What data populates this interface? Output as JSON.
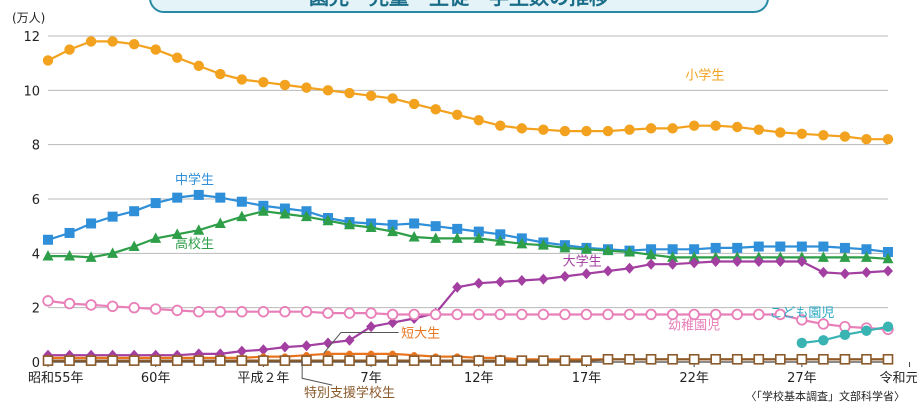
{
  "header": {
    "title": "園児・児童・生徒・学生数の推移"
  },
  "chart_data": {
    "type": "line",
    "title": "園児・児童・生徒・学生数の推移",
    "ylabel": "(万人)",
    "xlabel": "",
    "ylim": [
      0,
      12
    ],
    "y_ticks": [
      0,
      2,
      4,
      6,
      8,
      10,
      12
    ],
    "x_tick_labels": [
      "昭和55年",
      "60年",
      "平成２年",
      "7年",
      "12年",
      "17年",
      "22年",
      "27年",
      "令和元年"
    ],
    "grid": "horizontal",
    "source": "〈「学校基本調査」文部科学省〉",
    "x": [
      1980,
      1981,
      1982,
      1983,
      1984,
      1985,
      1986,
      1987,
      1988,
      1989,
      1990,
      1991,
      1992,
      1993,
      1994,
      1995,
      1996,
      1997,
      1998,
      1999,
      2000,
      2001,
      2002,
      2003,
      2004,
      2005,
      2006,
      2007,
      2008,
      2009,
      2010,
      2011,
      2012,
      2013,
      2014,
      2015,
      2016,
      2017,
      2018,
      2019
    ],
    "series": [
      {
        "name": "小学生",
        "color": "#f2a21e",
        "marker": "circle",
        "values": [
          11.1,
          11.5,
          11.8,
          11.8,
          11.7,
          11.5,
          11.2,
          10.9,
          10.6,
          10.4,
          10.3,
          10.2,
          10.1,
          10.0,
          9.9,
          9.8,
          9.7,
          9.5,
          9.3,
          9.1,
          8.9,
          8.7,
          8.6,
          8.55,
          8.5,
          8.5,
          8.5,
          8.55,
          8.6,
          8.6,
          8.7,
          8.7,
          8.65,
          8.55,
          8.45,
          8.4,
          8.35,
          8.3,
          8.2,
          8.2
        ]
      },
      {
        "name": "中学生",
        "color": "#2f8fd8",
        "marker": "square",
        "values": [
          4.5,
          4.75,
          5.1,
          5.35,
          5.55,
          5.85,
          6.05,
          6.15,
          6.05,
          5.9,
          5.75,
          5.65,
          5.55,
          5.3,
          5.15,
          5.1,
          5.05,
          5.1,
          5.0,
          4.9,
          4.8,
          4.7,
          4.55,
          4.4,
          4.3,
          4.2,
          4.15,
          4.1,
          4.15,
          4.15,
          4.15,
          4.2,
          4.2,
          4.25,
          4.25,
          4.25,
          4.25,
          4.2,
          4.15,
          4.05
        ]
      },
      {
        "name": "高校生",
        "color": "#2e9e48",
        "marker": "triangle",
        "values": [
          3.9,
          3.9,
          3.85,
          4.0,
          4.25,
          4.55,
          4.7,
          4.85,
          5.1,
          5.35,
          5.55,
          5.45,
          5.35,
          5.2,
          5.05,
          4.95,
          4.8,
          4.6,
          4.55,
          4.55,
          4.55,
          4.45,
          4.35,
          4.3,
          4.2,
          4.15,
          4.1,
          4.05,
          3.95,
          3.85,
          3.85,
          3.85,
          3.85,
          3.85,
          3.85,
          3.85,
          3.85,
          3.85,
          3.85,
          3.8
        ]
      },
      {
        "name": "大学生",
        "color": "#a23fa0",
        "marker": "diamond",
        "values": [
          0.25,
          0.25,
          0.25,
          0.25,
          0.25,
          0.25,
          0.25,
          0.3,
          0.3,
          0.4,
          0.45,
          0.55,
          0.6,
          0.7,
          0.8,
          1.3,
          1.45,
          1.6,
          1.8,
          2.75,
          2.9,
          2.95,
          3.0,
          3.05,
          3.15,
          3.25,
          3.35,
          3.45,
          3.6,
          3.6,
          3.65,
          3.7,
          3.7,
          3.7,
          3.7,
          3.7,
          3.3,
          3.25,
          3.3,
          3.35
        ]
      },
      {
        "name": "幼稚園児",
        "color": "#e87fb8",
        "marker": "circle-open",
        "values": [
          2.25,
          2.15,
          2.1,
          2.05,
          2.0,
          1.95,
          1.9,
          1.85,
          1.85,
          1.85,
          1.85,
          1.85,
          1.85,
          1.8,
          1.8,
          1.8,
          1.75,
          1.75,
          1.75,
          1.75,
          1.75,
          1.75,
          1.75,
          1.75,
          1.75,
          1.75,
          1.75,
          1.75,
          1.75,
          1.75,
          1.75,
          1.75,
          1.75,
          1.75,
          1.75,
          1.55,
          1.4,
          1.3,
          1.25,
          1.2
        ]
      },
      {
        "name": "短大生",
        "color": "#e8741e",
        "marker": "circle-small",
        "values": [
          0.15,
          0.15,
          0.15,
          0.15,
          0.15,
          0.15,
          0.15,
          0.15,
          0.15,
          0.15,
          0.2,
          0.2,
          0.25,
          0.3,
          0.3,
          0.3,
          0.3,
          0.25,
          0.2,
          0.2,
          0.15,
          0.15,
          0.1,
          0.1,
          0.1,
          0.1,
          0.1,
          0.1,
          0.1,
          0.1,
          0.1,
          0.1,
          0.1,
          0.1,
          0.1,
          0.1,
          0.1,
          0.1,
          0.1,
          0.1
        ]
      },
      {
        "name": "特別支援学校生",
        "color": "#8a5a2b",
        "marker": "square-open",
        "values": [
          0.05,
          0.05,
          0.05,
          0.05,
          0.05,
          0.05,
          0.05,
          0.05,
          0.05,
          0.05,
          0.05,
          0.05,
          0.05,
          0.05,
          0.05,
          0.05,
          0.05,
          0.05,
          0.05,
          0.05,
          0.05,
          0.05,
          0.05,
          0.05,
          0.05,
          0.05,
          0.1,
          0.1,
          0.1,
          0.1,
          0.1,
          0.1,
          0.1,
          0.1,
          0.1,
          0.1,
          0.1,
          0.1,
          0.1,
          0.1
        ]
      },
      {
        "name": "こども園児",
        "color": "#3ab3b3",
        "marker": "circle",
        "x": [
          2015,
          2016,
          2017,
          2018,
          2019
        ],
        "values": [
          0.7,
          0.8,
          1.0,
          1.15,
          1.3
        ]
      }
    ]
  }
}
